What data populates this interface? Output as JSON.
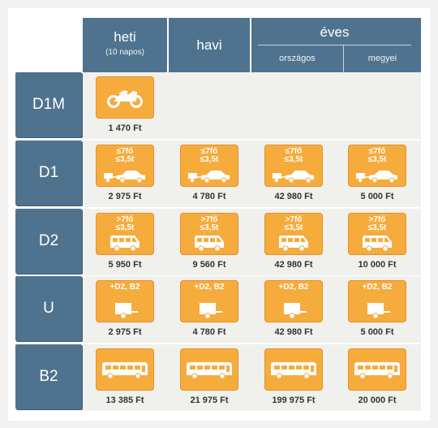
{
  "header": {
    "weekly": "heti",
    "weekly_sub": "(10 napos)",
    "monthly": "havi",
    "yearly": "éves",
    "national": "országos",
    "county": "megyei"
  },
  "rows": [
    {
      "label": "D1M",
      "icon": "motorcycle-icon",
      "tiles": [
        {
          "line1": "",
          "line2": "",
          "price": "1 470 Ft"
        }
      ]
    },
    {
      "label": "D1",
      "icon": "car-trailer-icon",
      "tiles": [
        {
          "line1": "≤7fő",
          "line2": "≤3,5t",
          "price": "2 975 Ft"
        },
        {
          "line1": "≤7fő",
          "line2": "≤3,5t",
          "price": "4 780 Ft"
        },
        {
          "line1": "≤7fő",
          "line2": "≤3,5t",
          "price": "42 980 Ft"
        },
        {
          "line1": "≤7fő",
          "line2": "≤3,5t",
          "price": "5 000 Ft"
        }
      ]
    },
    {
      "label": "D2",
      "icon": "van-icon",
      "tiles": [
        {
          "line1": ">7fő",
          "line2": "≤3,5t",
          "price": "5 950 Ft"
        },
        {
          "line1": ">7fő",
          "line2": "≤3,5t",
          "price": "9 560 Ft"
        },
        {
          "line1": ">7fő",
          "line2": "≤3,5t",
          "price": "42 980 Ft"
        },
        {
          "line1": ">7fő",
          "line2": "≤3,5t",
          "price": "10 000 Ft"
        }
      ]
    },
    {
      "label": "U",
      "icon": "trailer-icon",
      "tiles": [
        {
          "line1": "+D2, B2",
          "line2": "",
          "price": "2 975 Ft"
        },
        {
          "line1": "+D2, B2",
          "line2": "",
          "price": "4 780 Ft"
        },
        {
          "line1": "+D2, B2",
          "line2": "",
          "price": "42 980 Ft"
        },
        {
          "line1": "+D2, B2",
          "line2": "",
          "price": "5 000 Ft"
        }
      ]
    },
    {
      "label": "B2",
      "icon": "bus-icon",
      "tiles": [
        {
          "line1": "",
          "line2": "",
          "price": "13 385 Ft"
        },
        {
          "line1": "",
          "line2": "",
          "price": "21 975 Ft"
        },
        {
          "line1": "",
          "line2": "",
          "price": "199 975 Ft"
        },
        {
          "line1": "",
          "line2": "",
          "price": "20 000 Ft"
        }
      ]
    }
  ],
  "colors": {
    "header": "#4f738e",
    "tile": "#f6ab3d"
  }
}
